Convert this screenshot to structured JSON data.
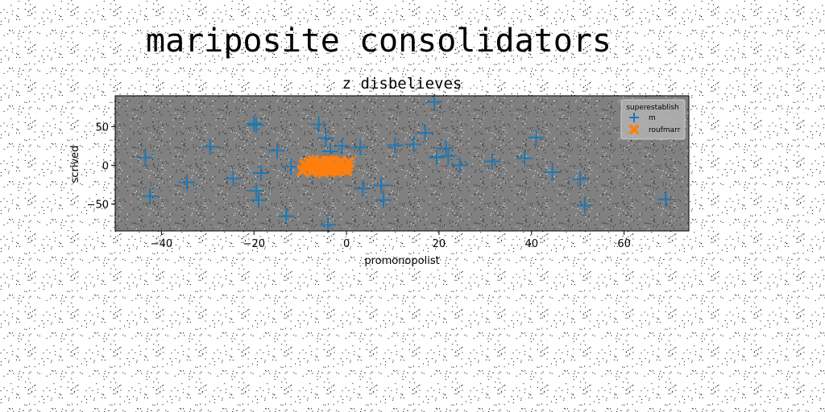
{
  "chart_data": {
    "type": "scatter",
    "title": "mariposite consolidators",
    "subtitle": "z disbelieves",
    "xlabel": "promonopolist",
    "ylabel": "scrived",
    "xlim": [
      -50,
      74
    ],
    "ylim": [
      -85,
      90
    ],
    "xticks": [
      -40,
      -20,
      0,
      20,
      40,
      60
    ],
    "yticks": [
      -50,
      0,
      50
    ],
    "grid": false,
    "background": "#808080",
    "legend": {
      "title": "superestablish",
      "placement": "top-right"
    },
    "series": [
      {
        "name": "m",
        "marker": "plus",
        "color": "#1f77b4",
        "points": [
          {
            "x": -43.5,
            "y": 10
          },
          {
            "x": -42.5,
            "y": -40
          },
          {
            "x": -34.5,
            "y": -22
          },
          {
            "x": -29.5,
            "y": 24
          },
          {
            "x": -24.5,
            "y": -17
          },
          {
            "x": -20,
            "y": 54
          },
          {
            "x": -19.5,
            "y": 52
          },
          {
            "x": -19.5,
            "y": -33
          },
          {
            "x": -19,
            "y": -45
          },
          {
            "x": -18.5,
            "y": -10
          },
          {
            "x": -15,
            "y": 19
          },
          {
            "x": -13,
            "y": -66
          },
          {
            "x": -12,
            "y": -2
          },
          {
            "x": -6,
            "y": 53
          },
          {
            "x": -4.5,
            "y": 35
          },
          {
            "x": -4,
            "y": -77
          },
          {
            "x": -3.5,
            "y": 18
          },
          {
            "x": -1,
            "y": 25
          },
          {
            "x": 3,
            "y": 23
          },
          {
            "x": 3.5,
            "y": -30
          },
          {
            "x": 7.5,
            "y": -26
          },
          {
            "x": 8,
            "y": -45
          },
          {
            "x": 10.5,
            "y": 26
          },
          {
            "x": 14.5,
            "y": 27
          },
          {
            "x": 17,
            "y": 42
          },
          {
            "x": 19,
            "y": 82
          },
          {
            "x": 19.5,
            "y": 10
          },
          {
            "x": 21.5,
            "y": 22
          },
          {
            "x": 22,
            "y": 12
          },
          {
            "x": 24.5,
            "y": 0
          },
          {
            "x": 31.5,
            "y": 5
          },
          {
            "x": 38.5,
            "y": 9
          },
          {
            "x": 41,
            "y": 36
          },
          {
            "x": 44.5,
            "y": -9
          },
          {
            "x": 50.5,
            "y": -18
          },
          {
            "x": 51.5,
            "y": -52
          },
          {
            "x": 69,
            "y": -44
          }
        ]
      },
      {
        "name": "roufmarr",
        "marker": "x",
        "color": "#ff7f0e",
        "points": [
          {
            "x": -9.5,
            "y": -7
          },
          {
            "x": -9,
            "y": 1
          },
          {
            "x": -8.5,
            "y": -4
          },
          {
            "x": -8,
            "y": 3
          },
          {
            "x": -7.5,
            "y": -8
          },
          {
            "x": -7,
            "y": 0
          },
          {
            "x": -6.5,
            "y": -5
          },
          {
            "x": -6,
            "y": 4
          },
          {
            "x": -5.5,
            "y": -2
          },
          {
            "x": -5,
            "y": -9
          },
          {
            "x": -4.5,
            "y": 2
          },
          {
            "x": -4,
            "y": -6
          },
          {
            "x": -3.5,
            "y": 5
          },
          {
            "x": -3,
            "y": -3
          },
          {
            "x": -2.5,
            "y": 1
          },
          {
            "x": -2,
            "y": -8
          },
          {
            "x": -1.5,
            "y": 3
          },
          {
            "x": -1,
            "y": -5
          },
          {
            "x": -0.5,
            "y": 0
          },
          {
            "x": 0,
            "y": -7
          },
          {
            "x": 0.5,
            "y": 4
          },
          {
            "x": -8.8,
            "y": -1
          },
          {
            "x": -7.2,
            "y": 6
          },
          {
            "x": -5.8,
            "y": -7
          },
          {
            "x": -4.2,
            "y": 6
          },
          {
            "x": -2.8,
            "y": -6
          },
          {
            "x": -1.2,
            "y": 5
          },
          {
            "x": 0.2,
            "y": -2
          },
          {
            "x": -6.8,
            "y": 2
          },
          {
            "x": -3.2,
            "y": -1
          }
        ]
      }
    ]
  }
}
